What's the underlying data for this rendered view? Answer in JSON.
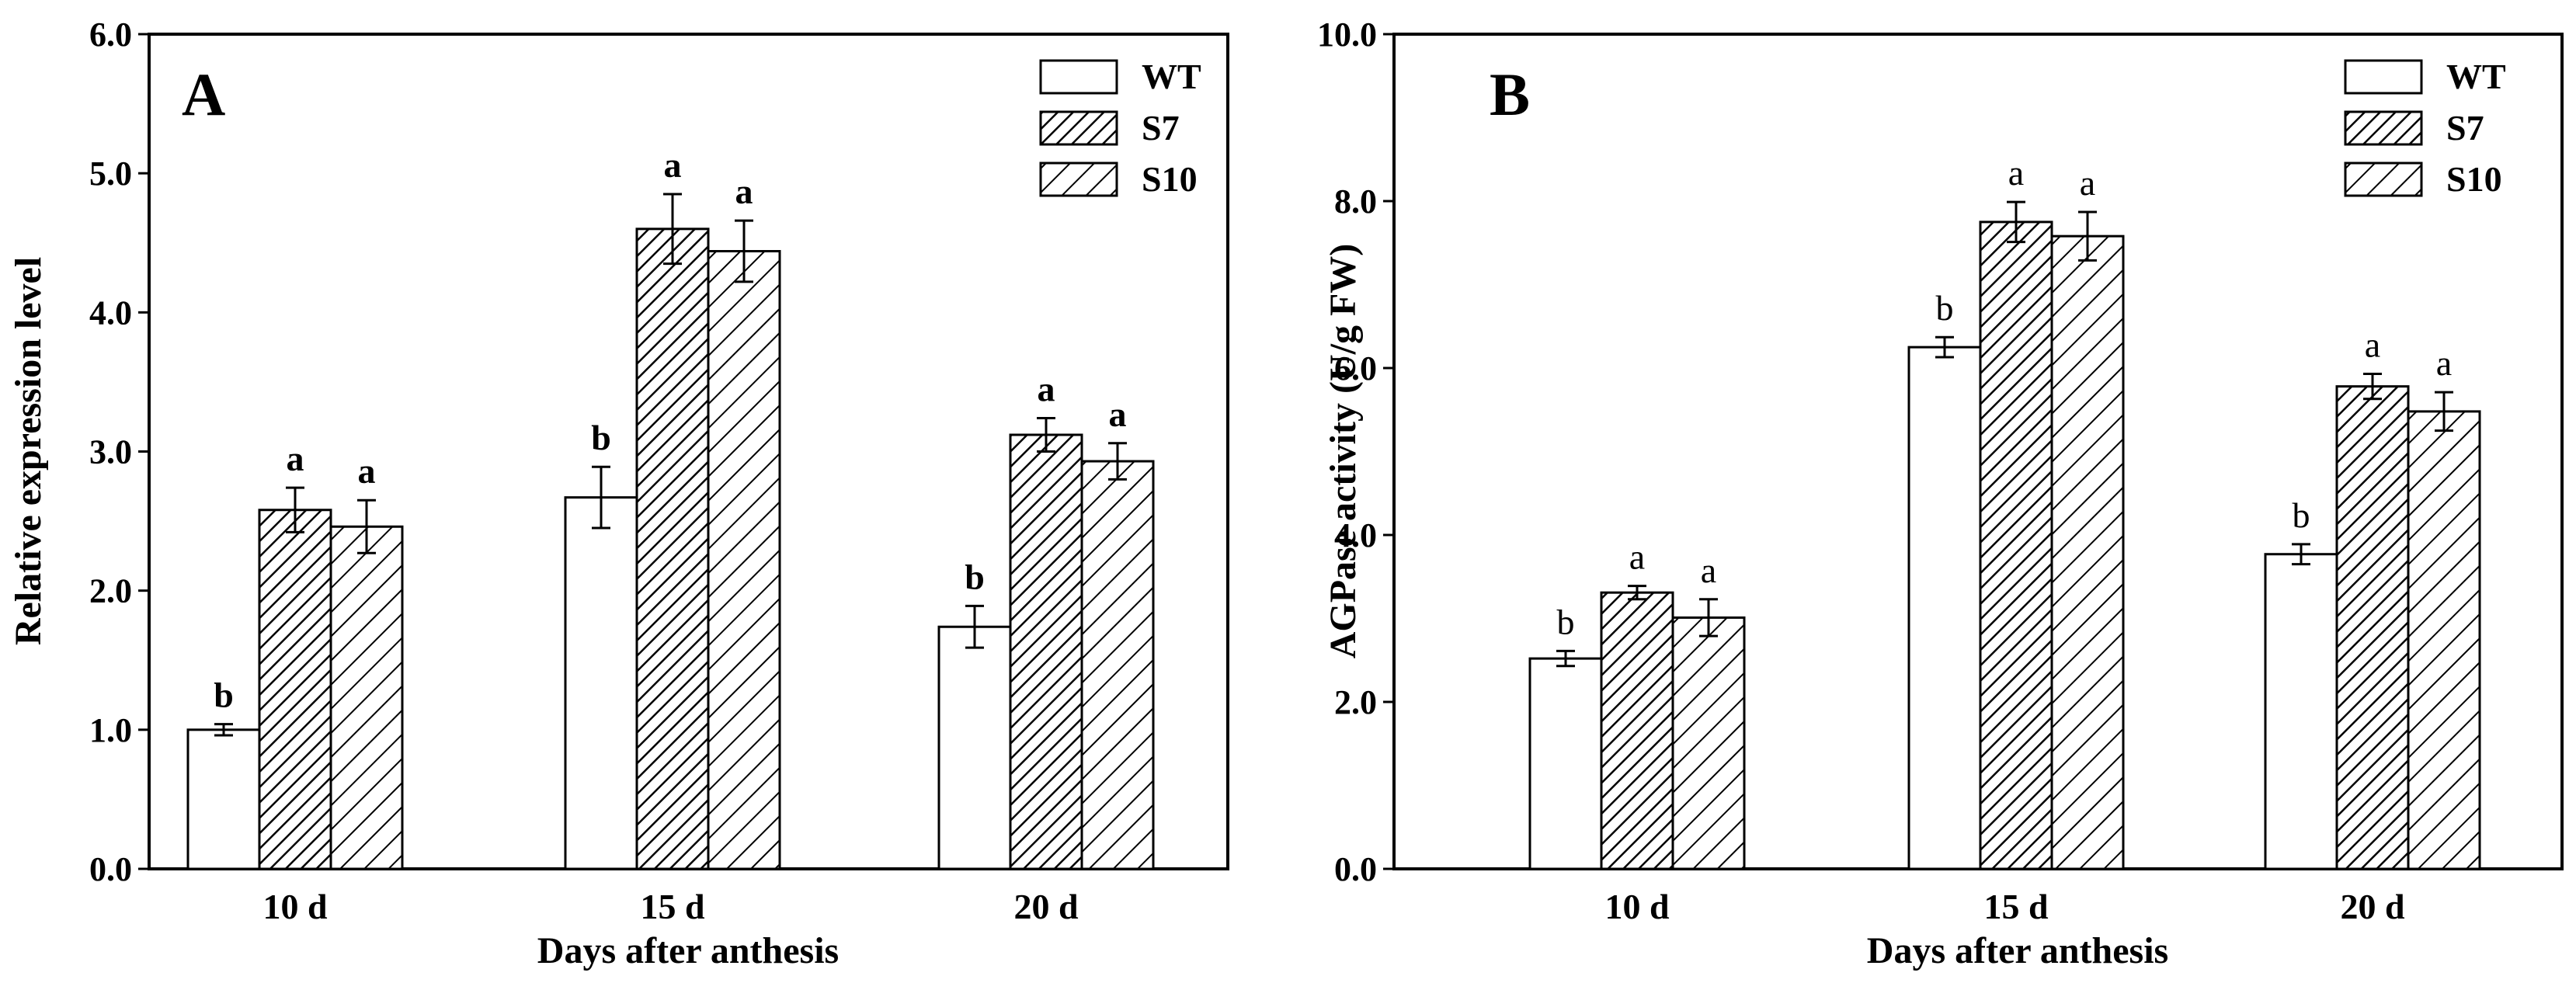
{
  "chart_data": [
    {
      "type": "bar",
      "panel_label": "A",
      "xlabel": "Days after anthesis",
      "ylabel": "Relative expression level",
      "ylim": [
        0,
        6
      ],
      "yticks": [
        "0.0",
        "1.0",
        "2.0",
        "3.0",
        "4.0",
        "5.0",
        "6.0"
      ],
      "categories": [
        "10 d",
        "15 d",
        "20 d"
      ],
      "legend_position": "top-right",
      "sig_letter_style": "bold",
      "series": [
        {
          "name": "WT",
          "pattern": "none",
          "values": [
            1.0,
            2.67,
            1.74
          ],
          "errors": [
            0.04,
            0.22,
            0.15
          ],
          "letters": [
            "b",
            "b",
            "b"
          ]
        },
        {
          "name": "S7",
          "pattern": "dense-hatch",
          "values": [
            2.58,
            4.6,
            3.12
          ],
          "errors": [
            0.16,
            0.25,
            0.12
          ],
          "letters": [
            "a",
            "a",
            "a"
          ]
        },
        {
          "name": "S10",
          "pattern": "sparse-hatch",
          "values": [
            2.46,
            4.44,
            2.93
          ],
          "errors": [
            0.19,
            0.22,
            0.13
          ],
          "letters": [
            "a",
            "a",
            "a"
          ]
        }
      ]
    },
    {
      "type": "bar",
      "panel_label": "B",
      "xlabel": "Days after anthesis",
      "ylabel": "AGPase activity (U/g FW)",
      "ylim": [
        0,
        10
      ],
      "yticks": [
        "0.0",
        "2.0",
        "4.0",
        "6.0",
        "8.0",
        "10.0"
      ],
      "categories": [
        "10 d",
        "15 d",
        "20 d"
      ],
      "legend_position": "top-right",
      "sig_letter_style": "normal",
      "series": [
        {
          "name": "WT",
          "pattern": "none",
          "values": [
            2.52,
            6.25,
            3.77
          ],
          "errors": [
            0.09,
            0.12,
            0.12
          ],
          "letters": [
            "b",
            "b",
            "b"
          ]
        },
        {
          "name": "S7",
          "pattern": "dense-hatch",
          "values": [
            3.31,
            7.75,
            5.78
          ],
          "errors": [
            0.08,
            0.24,
            0.15
          ],
          "letters": [
            "a",
            "a",
            "a"
          ]
        },
        {
          "name": "S10",
          "pattern": "sparse-hatch",
          "values": [
            3.01,
            7.58,
            5.48
          ],
          "errors": [
            0.22,
            0.29,
            0.23
          ],
          "letters": [
            "a",
            "a",
            "a"
          ]
        }
      ]
    }
  ]
}
